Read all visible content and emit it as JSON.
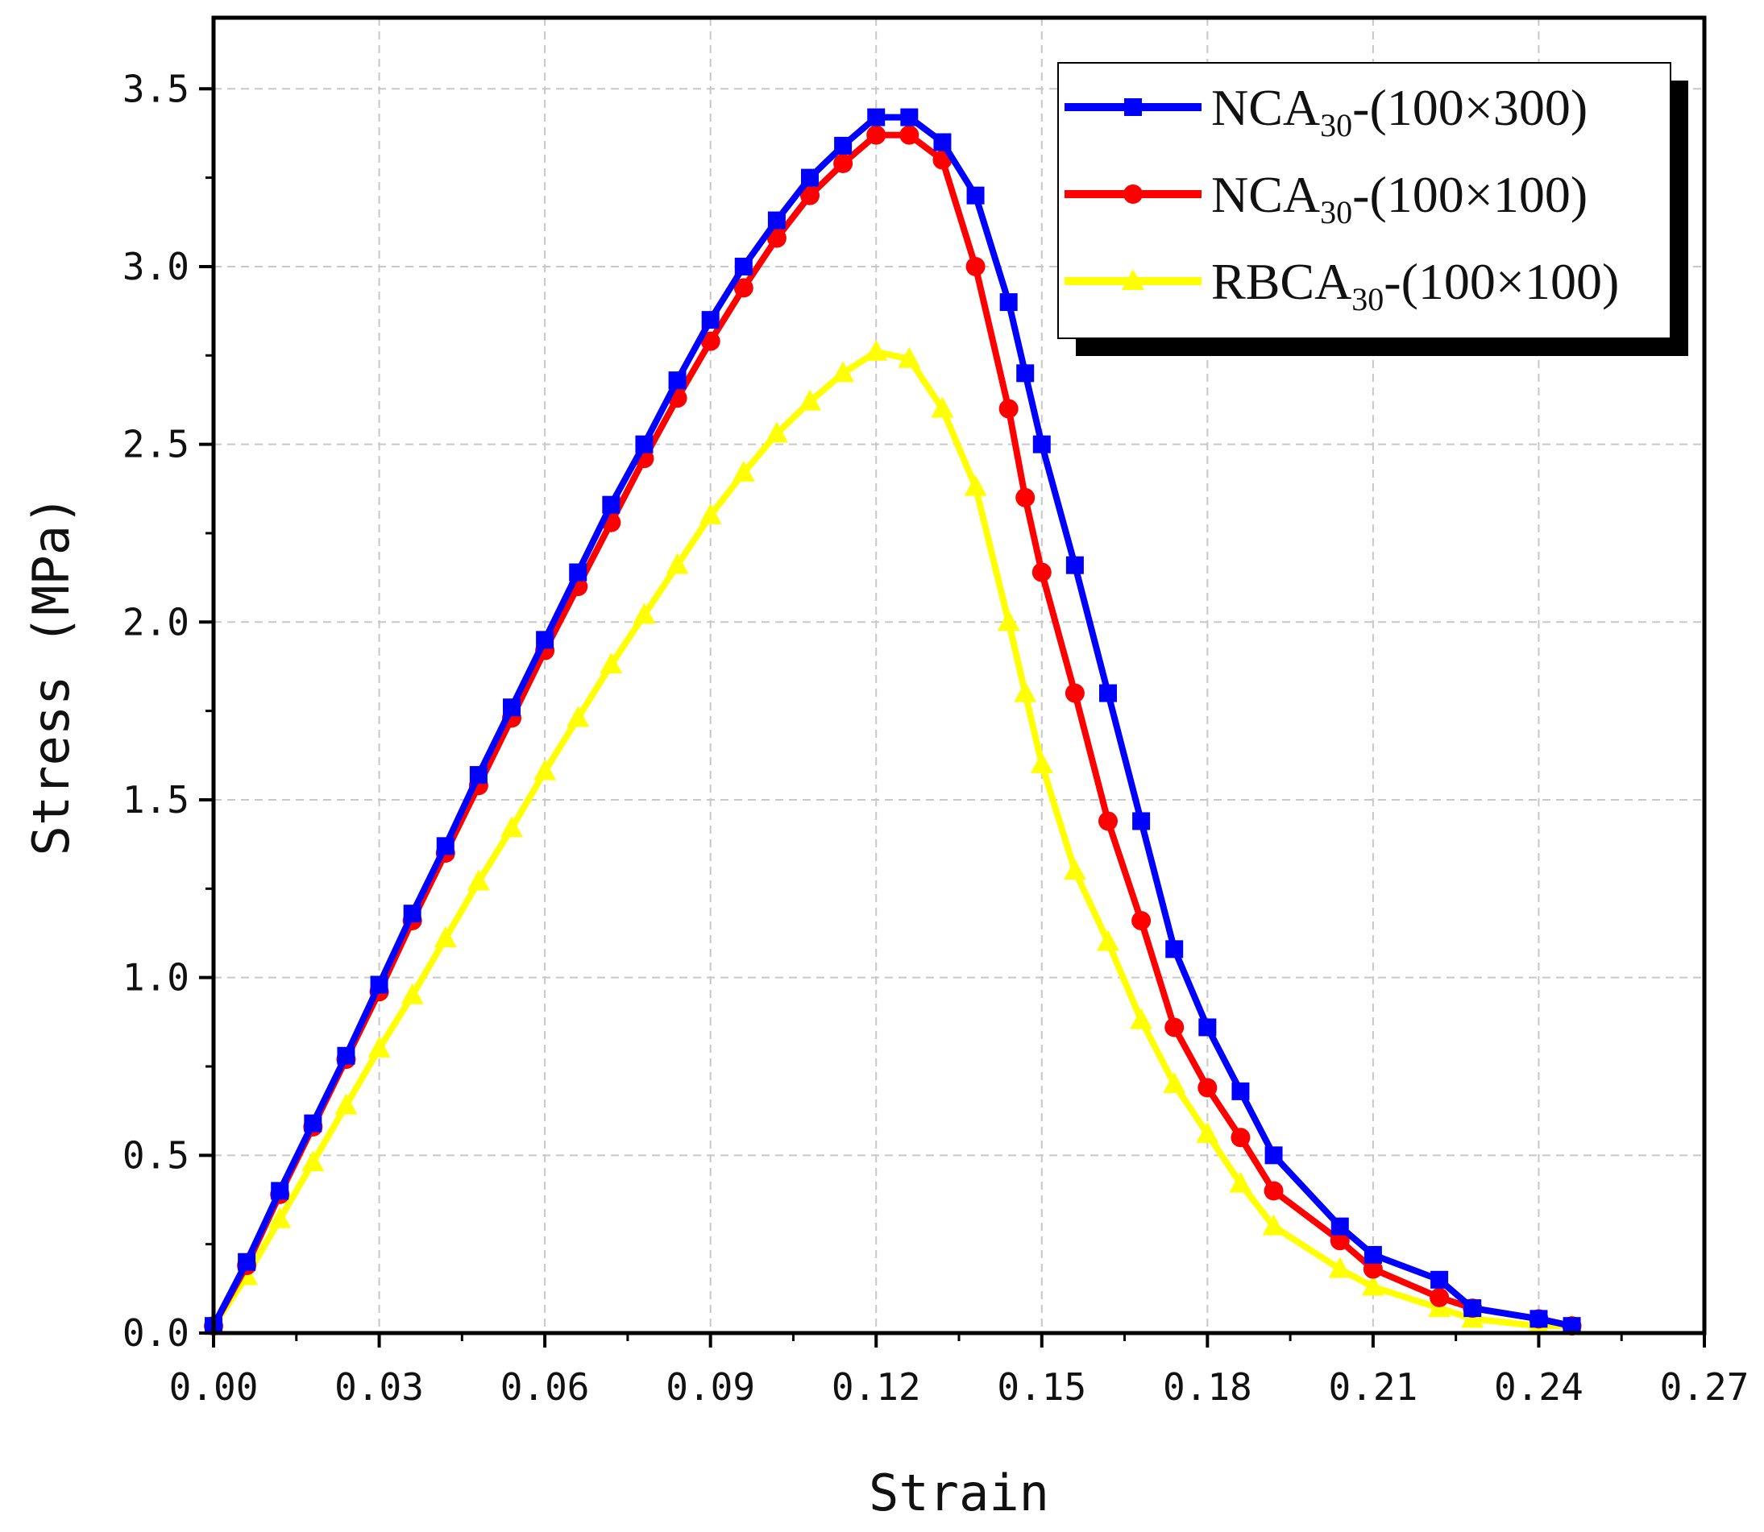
{
  "chart_data": {
    "type": "line",
    "xlabel": "Strain",
    "ylabel": "Stress (MPa)",
    "xlim": [
      0.0,
      0.27
    ],
    "ylim": [
      0.0,
      3.7
    ],
    "xticks": [
      "0.00",
      "0.03",
      "0.06",
      "0.09",
      "0.12",
      "0.15",
      "0.18",
      "0.21",
      "0.24",
      "0.27"
    ],
    "yticks": [
      "0.0",
      "0.5",
      "1.0",
      "1.5",
      "2.0",
      "2.5",
      "3.0",
      "3.5"
    ],
    "grid": true,
    "legend_position": "top-right",
    "series": [
      {
        "name_main": "NCA",
        "name_sub": "30",
        "name_suffix": "-(100×300)",
        "color": "#0000ff",
        "marker": "square",
        "x": [
          0.0,
          0.006,
          0.012,
          0.018,
          0.024,
          0.03,
          0.036,
          0.042,
          0.048,
          0.054,
          0.06,
          0.066,
          0.072,
          0.078,
          0.084,
          0.09,
          0.096,
          0.102,
          0.108,
          0.114,
          0.12,
          0.126,
          0.132,
          0.138,
          0.144,
          0.147,
          0.15,
          0.156,
          0.162,
          0.168,
          0.174,
          0.18,
          0.186,
          0.192,
          0.204,
          0.21,
          0.222,
          0.228,
          0.24,
          0.246
        ],
        "y": [
          0.02,
          0.2,
          0.4,
          0.59,
          0.78,
          0.98,
          1.18,
          1.37,
          1.57,
          1.76,
          1.95,
          2.14,
          2.33,
          2.5,
          2.68,
          2.85,
          3.0,
          3.13,
          3.25,
          3.34,
          3.42,
          3.42,
          3.35,
          3.2,
          2.9,
          2.7,
          2.5,
          2.16,
          1.8,
          1.44,
          1.08,
          0.86,
          0.68,
          0.5,
          0.3,
          0.22,
          0.15,
          0.07,
          0.04,
          0.02
        ]
      },
      {
        "name_main": "NCA",
        "name_sub": "30",
        "name_suffix": "-(100×100)",
        "color": "#ff0000",
        "marker": "circle",
        "x": [
          0.0,
          0.006,
          0.012,
          0.018,
          0.024,
          0.03,
          0.036,
          0.042,
          0.048,
          0.054,
          0.06,
          0.066,
          0.072,
          0.078,
          0.084,
          0.09,
          0.096,
          0.102,
          0.108,
          0.114,
          0.12,
          0.126,
          0.132,
          0.138,
          0.144,
          0.147,
          0.15,
          0.156,
          0.162,
          0.168,
          0.174,
          0.18,
          0.186,
          0.192,
          0.204,
          0.21,
          0.222,
          0.228,
          0.24,
          0.246
        ],
        "y": [
          0.02,
          0.19,
          0.39,
          0.58,
          0.77,
          0.96,
          1.16,
          1.35,
          1.54,
          1.73,
          1.92,
          2.1,
          2.28,
          2.46,
          2.63,
          2.79,
          2.94,
          3.08,
          3.2,
          3.29,
          3.37,
          3.37,
          3.3,
          3.0,
          2.6,
          2.35,
          2.14,
          1.8,
          1.44,
          1.16,
          0.86,
          0.69,
          0.55,
          0.4,
          0.26,
          0.18,
          0.1,
          0.07,
          0.04,
          0.02
        ]
      },
      {
        "name_main": "RBCA",
        "name_sub": "30",
        "name_suffix": "-(100×100)",
        "color": "#ffff00",
        "marker": "triangle",
        "x": [
          0.0,
          0.006,
          0.012,
          0.018,
          0.024,
          0.03,
          0.036,
          0.042,
          0.048,
          0.054,
          0.06,
          0.066,
          0.072,
          0.078,
          0.084,
          0.09,
          0.096,
          0.102,
          0.108,
          0.114,
          0.12,
          0.126,
          0.132,
          0.138,
          0.144,
          0.147,
          0.15,
          0.156,
          0.162,
          0.168,
          0.174,
          0.18,
          0.186,
          0.192,
          0.204,
          0.21,
          0.222,
          0.228,
          0.24,
          0.246
        ],
        "y": [
          0.02,
          0.16,
          0.32,
          0.48,
          0.64,
          0.8,
          0.95,
          1.11,
          1.27,
          1.42,
          1.58,
          1.73,
          1.88,
          2.02,
          2.16,
          2.3,
          2.42,
          2.53,
          2.62,
          2.7,
          2.76,
          2.74,
          2.6,
          2.38,
          2.0,
          1.8,
          1.6,
          1.3,
          1.1,
          0.88,
          0.7,
          0.56,
          0.42,
          0.3,
          0.18,
          0.13,
          0.07,
          0.04,
          0.02,
          0.02
        ]
      }
    ]
  }
}
